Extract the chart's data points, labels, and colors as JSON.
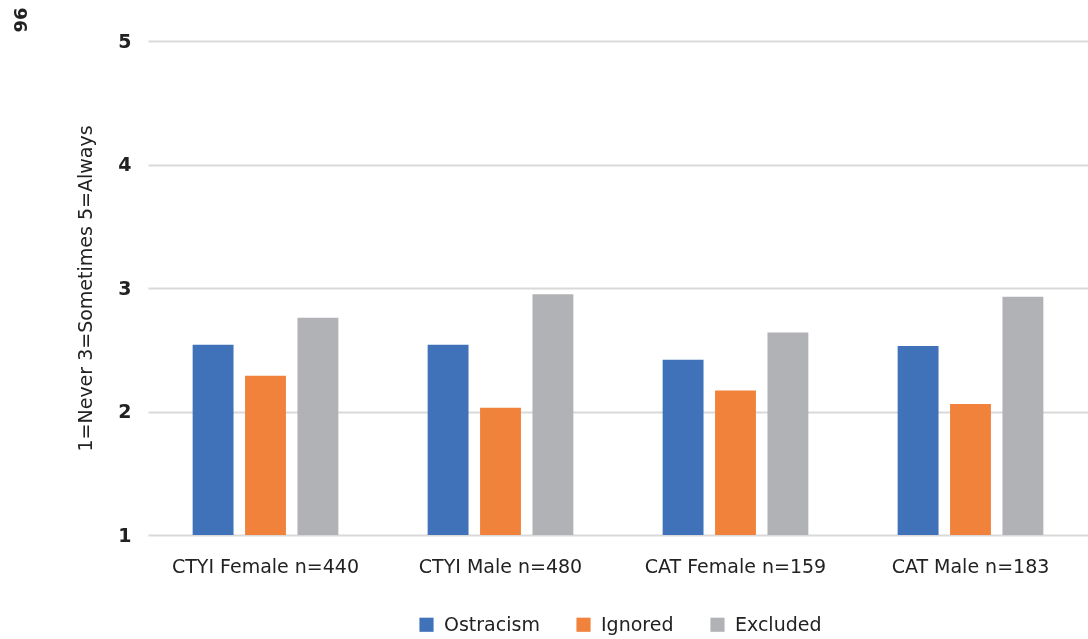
{
  "chart_data": {
    "type": "bar",
    "ylabel": "1=Never 3=Sometimes 5=Always",
    "categories": [
      "CTYI Female n=440",
      "CTYI Male n=480",
      "CAT Female n=159",
      "CAT Male n=183"
    ],
    "series": [
      {
        "name": "Ostracism",
        "color": "#3f72b8",
        "values": [
          2.54,
          2.54,
          2.42,
          2.53
        ]
      },
      {
        "name": "Ignored",
        "color": "#f1823b",
        "values": [
          2.29,
          2.03,
          2.17,
          2.06
        ]
      },
      {
        "name": "Excluded",
        "color": "#b1b2b5",
        "values": [
          2.76,
          2.95,
          2.64,
          2.93
        ]
      }
    ],
    "ylim": [
      1,
      5
    ],
    "yticks": [
      1,
      2,
      3,
      4,
      5
    ],
    "grid": "y",
    "legend": "bottom",
    "annotations": [
      "96"
    ]
  }
}
